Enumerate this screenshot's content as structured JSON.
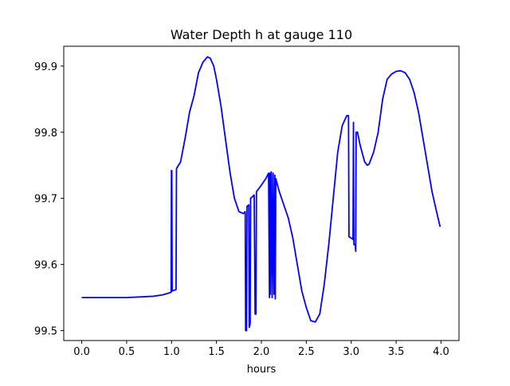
{
  "chart_data": {
    "type": "line",
    "title": "Water Depth h at gauge 110",
    "xlabel": "hours",
    "ylabel": "",
    "xlim": [
      -0.2,
      4.2
    ],
    "ylim": [
      99.485,
      99.93
    ],
    "xticks": [
      0.0,
      0.5,
      1.0,
      1.5,
      2.0,
      2.5,
      3.0,
      3.5,
      4.0
    ],
    "xtick_labels": [
      "0.0",
      "0.5",
      "1.0",
      "1.5",
      "2.0",
      "2.5",
      "3.0",
      "3.5",
      "4.0"
    ],
    "yticks": [
      99.5,
      99.6,
      99.7,
      99.8,
      99.9
    ],
    "ytick_labels": [
      "99.5",
      "99.6",
      "99.7",
      "99.8",
      "99.9"
    ],
    "grid": false,
    "legend": "none",
    "series": [
      {
        "color": "#0000ff",
        "points": [
          [
            0.0,
            99.55
          ],
          [
            0.5,
            99.55
          ],
          [
            0.8,
            99.552
          ],
          [
            0.9,
            99.554
          ],
          [
            0.95,
            99.556
          ],
          [
            0.995,
            99.558
          ],
          [
            0.999,
            99.742
          ],
          [
            1.003,
            99.742
          ],
          [
            1.007,
            99.56
          ],
          [
            1.05,
            99.562
          ],
          [
            1.055,
            99.745
          ],
          [
            1.1,
            99.755
          ],
          [
            1.15,
            99.79
          ],
          [
            1.2,
            99.83
          ],
          [
            1.25,
            99.855
          ],
          [
            1.3,
            99.89
          ],
          [
            1.35,
            99.906
          ],
          [
            1.4,
            99.914
          ],
          [
            1.43,
            99.912
          ],
          [
            1.47,
            99.9
          ],
          [
            1.5,
            99.88
          ],
          [
            1.55,
            99.84
          ],
          [
            1.6,
            99.79
          ],
          [
            1.65,
            99.74
          ],
          [
            1.7,
            99.7
          ],
          [
            1.75,
            99.68
          ],
          [
            1.8,
            99.677
          ],
          [
            1.82,
            99.68
          ],
          [
            1.825,
            99.5
          ],
          [
            1.835,
            99.5
          ],
          [
            1.84,
            99.688
          ],
          [
            1.86,
            99.69
          ],
          [
            1.865,
            99.505
          ],
          [
            1.875,
            99.51
          ],
          [
            1.88,
            99.7
          ],
          [
            1.92,
            99.705
          ],
          [
            1.93,
            99.525
          ],
          [
            1.94,
            99.525
          ],
          [
            1.945,
            99.71
          ],
          [
            2.0,
            99.72
          ],
          [
            2.05,
            99.73
          ],
          [
            2.08,
            99.738
          ],
          [
            2.09,
            99.55
          ],
          [
            2.095,
            99.738
          ],
          [
            2.1,
            99.555
          ],
          [
            2.11,
            99.74
          ],
          [
            2.12,
            99.55
          ],
          [
            2.13,
            99.738
          ],
          [
            2.14,
            99.555
          ],
          [
            2.15,
            99.735
          ],
          [
            2.155,
            99.548
          ],
          [
            2.16,
            99.73
          ],
          [
            2.2,
            99.71
          ],
          [
            2.25,
            99.69
          ],
          [
            2.3,
            99.67
          ],
          [
            2.35,
            99.64
          ],
          [
            2.4,
            99.6
          ],
          [
            2.45,
            99.56
          ],
          [
            2.5,
            99.535
          ],
          [
            2.55,
            99.515
          ],
          [
            2.6,
            99.513
          ],
          [
            2.65,
            99.525
          ],
          [
            2.7,
            99.57
          ],
          [
            2.75,
            99.63
          ],
          [
            2.8,
            99.7
          ],
          [
            2.85,
            99.77
          ],
          [
            2.9,
            99.81
          ],
          [
            2.95,
            99.825
          ],
          [
            2.97,
            99.825
          ],
          [
            2.975,
            99.642
          ],
          [
            3.0,
            99.64
          ],
          [
            3.02,
            99.638
          ],
          [
            3.025,
            99.815
          ],
          [
            3.03,
            99.63
          ],
          [
            3.045,
            99.63
          ],
          [
            3.05,
            99.62
          ],
          [
            3.055,
            99.8
          ],
          [
            3.07,
            99.8
          ],
          [
            3.1,
            99.78
          ],
          [
            3.15,
            99.755
          ],
          [
            3.18,
            99.75
          ],
          [
            3.2,
            99.752
          ],
          [
            3.25,
            99.77
          ],
          [
            3.3,
            99.8
          ],
          [
            3.35,
            99.85
          ],
          [
            3.4,
            99.88
          ],
          [
            3.45,
            99.888
          ],
          [
            3.5,
            99.892
          ],
          [
            3.55,
            99.893
          ],
          [
            3.6,
            99.89
          ],
          [
            3.65,
            99.88
          ],
          [
            3.7,
            99.86
          ],
          [
            3.75,
            99.83
          ],
          [
            3.8,
            99.79
          ],
          [
            3.85,
            99.75
          ],
          [
            3.9,
            99.71
          ],
          [
            3.95,
            99.68
          ],
          [
            3.99,
            99.657
          ]
        ]
      }
    ]
  }
}
